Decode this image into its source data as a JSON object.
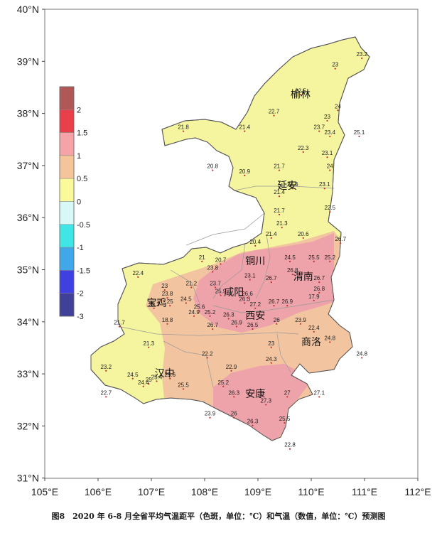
{
  "caption": "图8　2020 年 6-8 月全省平均气温距平（色斑，单位：℃）和气温（数值，单位：℃）预测图",
  "axes": {
    "lat_ticks": [
      "40°N",
      "39°N",
      "38°N",
      "37°N",
      "36°N",
      "35°N",
      "34°N",
      "33°N",
      "32°N",
      "31°N"
    ],
    "lon_ticks": [
      "105°E",
      "106°E",
      "107°E",
      "108°E",
      "109°E",
      "110°E",
      "111°E",
      "112°E"
    ]
  },
  "legend": {
    "labels": [
      "2",
      "1.5",
      "1",
      "0.5",
      "0",
      "-0.5",
      "-1",
      "-1.5",
      "-2",
      "-3"
    ],
    "colors": [
      "#b05858",
      "#e8404a",
      "#f5a3a6",
      "#f5c59a",
      "#fafa9a",
      "#d8f8f8",
      "#40e6e6",
      "#40a8e8",
      "#4040e0",
      "#404098"
    ]
  },
  "anomaly_colors": {
    "zero_to_half": "#f5f5a0",
    "half_to_one": "#f2c4a0",
    "one_to_onehalf": "#eea2aa"
  },
  "cities": [
    {
      "name": "榆林",
      "lon": 109.8,
      "lat": 38.3
    },
    {
      "name": "延安",
      "lon": 109.55,
      "lat": 36.55
    },
    {
      "name": "铜川",
      "lon": 108.95,
      "lat": 35.1
    },
    {
      "name": "渭南",
      "lon": 109.85,
      "lat": 34.8
    },
    {
      "name": "咸阳",
      "lon": 108.55,
      "lat": 34.5
    },
    {
      "name": "宝鸡",
      "lon": 107.1,
      "lat": 34.3
    },
    {
      "name": "西安",
      "lon": 108.95,
      "lat": 34.05
    },
    {
      "name": "商洛",
      "lon": 110.0,
      "lat": 33.55
    },
    {
      "name": "汉中",
      "lon": 107.25,
      "lat": 32.95
    },
    {
      "name": "安康",
      "lon": 108.95,
      "lat": 32.55
    }
  ],
  "temperatures": [
    {
      "v": "23.2",
      "lon": 110.95,
      "lat": 39.1
    },
    {
      "v": "23",
      "lon": 110.45,
      "lat": 38.9
    },
    {
      "v": "22.5",
      "lon": 109.8,
      "lat": 38.4
    },
    {
      "v": "22.7",
      "lon": 109.3,
      "lat": 38.0
    },
    {
      "v": "23",
      "lon": 110.3,
      "lat": 37.9
    },
    {
      "v": "24",
      "lon": 110.5,
      "lat": 38.1
    },
    {
      "v": "23.7",
      "lon": 110.15,
      "lat": 37.7
    },
    {
      "v": "23.4",
      "lon": 110.35,
      "lat": 37.6
    },
    {
      "v": "25.1",
      "lon": 110.9,
      "lat": 37.6
    },
    {
      "v": "21.8",
      "lon": 107.6,
      "lat": 37.7
    },
    {
      "v": "21.4",
      "lon": 108.75,
      "lat": 37.7
    },
    {
      "v": "22.3",
      "lon": 109.85,
      "lat": 37.3
    },
    {
      "v": "23.1",
      "lon": 110.3,
      "lat": 37.2
    },
    {
      "v": "20.8",
      "lon": 108.15,
      "lat": 36.95
    },
    {
      "v": "20.9",
      "lon": 108.75,
      "lat": 36.85
    },
    {
      "v": "21.7",
      "lon": 109.4,
      "lat": 36.95
    },
    {
      "v": "24",
      "lon": 110.35,
      "lat": 36.95
    },
    {
      "v": "22.6",
      "lon": 109.65,
      "lat": 36.6
    },
    {
      "v": "23.1",
      "lon": 110.25,
      "lat": 36.6
    },
    {
      "v": "21.4",
      "lon": 109.4,
      "lat": 36.45
    },
    {
      "v": "21.7",
      "lon": 109.4,
      "lat": 36.1
    },
    {
      "v": "22.5",
      "lon": 110.35,
      "lat": 36.15
    },
    {
      "v": "21.3",
      "lon": 109.45,
      "lat": 35.85
    },
    {
      "v": "21.4",
      "lon": 109.25,
      "lat": 35.65
    },
    {
      "v": "20.6",
      "lon": 109.85,
      "lat": 35.65
    },
    {
      "v": "20.4",
      "lon": 108.95,
      "lat": 35.5
    },
    {
      "v": "26.7",
      "lon": 110.55,
      "lat": 35.55
    },
    {
      "v": "21",
      "lon": 107.95,
      "lat": 35.2
    },
    {
      "v": "20.7",
      "lon": 108.3,
      "lat": 35.15
    },
    {
      "v": "23.8",
      "lon": 108.15,
      "lat": 35.0
    },
    {
      "v": "22.4",
      "lon": 106.75,
      "lat": 34.9
    },
    {
      "v": "24.5",
      "lon": 109.6,
      "lat": 35.2
    },
    {
      "v": "25.5",
      "lon": 110.05,
      "lat": 35.2
    },
    {
      "v": "25.2",
      "lon": 110.35,
      "lat": 35.2
    },
    {
      "v": "26.8",
      "lon": 109.65,
      "lat": 34.95
    },
    {
      "v": "23.1",
      "lon": 108.85,
      "lat": 34.85
    },
    {
      "v": "26.7",
      "lon": 109.25,
      "lat": 34.8
    },
    {
      "v": "26.7",
      "lon": 110.15,
      "lat": 34.8
    },
    {
      "v": "23",
      "lon": 107.25,
      "lat": 34.65
    },
    {
      "v": "21.2",
      "lon": 107.75,
      "lat": 34.7
    },
    {
      "v": "23.7",
      "lon": 108.2,
      "lat": 34.7
    },
    {
      "v": "23.8",
      "lon": 107.3,
      "lat": 34.5
    },
    {
      "v": "24.5",
      "lon": 107.65,
      "lat": 34.4
    },
    {
      "v": "25",
      "lon": 107.35,
      "lat": 34.35
    },
    {
      "v": "25.3",
      "lon": 107.05,
      "lat": 34.3
    },
    {
      "v": "25.6",
      "lon": 107.9,
      "lat": 34.25
    },
    {
      "v": "25.9",
      "lon": 108.3,
      "lat": 34.55
    },
    {
      "v": "24.9",
      "lon": 107.8,
      "lat": 34.15
    },
    {
      "v": "25.2",
      "lon": 108.1,
      "lat": 34.15
    },
    {
      "v": "26.3",
      "lon": 108.45,
      "lat": 34.1
    },
    {
      "v": "26.3",
      "lon": 108.75,
      "lat": 34.4
    },
    {
      "v": "26.6",
      "lon": 108.8,
      "lat": 34.5
    },
    {
      "v": "27.2",
      "lon": 108.95,
      "lat": 34.3
    },
    {
      "v": "26.7",
      "lon": 109.3,
      "lat": 34.35
    },
    {
      "v": "26.9",
      "lon": 109.55,
      "lat": 34.35
    },
    {
      "v": "26.8",
      "lon": 110.15,
      "lat": 34.6
    },
    {
      "v": "17.9",
      "lon": 110.05,
      "lat": 34.45
    },
    {
      "v": "18.8",
      "lon": 107.3,
      "lat": 34.0
    },
    {
      "v": "26.7",
      "lon": 108.15,
      "lat": 33.9
    },
    {
      "v": "26.9",
      "lon": 108.6,
      "lat": 33.95
    },
    {
      "v": "26.5",
      "lon": 108.9,
      "lat": 33.9
    },
    {
      "v": "26",
      "lon": 109.35,
      "lat": 34.0
    },
    {
      "v": "23.9",
      "lon": 109.8,
      "lat": 34.0
    },
    {
      "v": "22.4",
      "lon": 110.05,
      "lat": 33.85
    },
    {
      "v": "21.7",
      "lon": 106.4,
      "lat": 33.95
    },
    {
      "v": "21.3",
      "lon": 106.95,
      "lat": 33.55
    },
    {
      "v": "23",
      "lon": 109.25,
      "lat": 33.55
    },
    {
      "v": "24.8",
      "lon": 110.35,
      "lat": 33.65
    },
    {
      "v": "24.8",
      "lon": 110.95,
      "lat": 33.35
    },
    {
      "v": "22.2",
      "lon": 108.05,
      "lat": 33.35
    },
    {
      "v": "24.3",
      "lon": 109.25,
      "lat": 33.25
    },
    {
      "v": "23.2",
      "lon": 106.15,
      "lat": 33.1
    },
    {
      "v": "22.9",
      "lon": 108.5,
      "lat": 33.1
    },
    {
      "v": "24.5",
      "lon": 106.65,
      "lat": 32.95
    },
    {
      "v": "25.6",
      "lon": 107.35,
      "lat": 32.95
    },
    {
      "v": "25.4",
      "lon": 107.1,
      "lat": 32.9
    },
    {
      "v": "24.4",
      "lon": 106.85,
      "lat": 32.8
    },
    {
      "v": "25",
      "lon": 106.95,
      "lat": 32.85
    },
    {
      "v": "25.5",
      "lon": 107.6,
      "lat": 32.75
    },
    {
      "v": "25.2",
      "lon": 108.35,
      "lat": 32.8
    },
    {
      "v": "26.3",
      "lon": 108.55,
      "lat": 32.6
    },
    {
      "v": "27",
      "lon": 109.55,
      "lat": 32.6
    },
    {
      "v": "27.1",
      "lon": 110.15,
      "lat": 32.6
    },
    {
      "v": "22.7",
      "lon": 106.15,
      "lat": 32.6
    },
    {
      "v": "27.3",
      "lon": 109.15,
      "lat": 32.45
    },
    {
      "v": "23.9",
      "lon": 108.1,
      "lat": 32.2
    },
    {
      "v": "26",
      "lon": 108.55,
      "lat": 32.2
    },
    {
      "v": "25.5",
      "lon": 109.5,
      "lat": 32.1
    },
    {
      "v": "26.3",
      "lon": 108.9,
      "lat": 32.05
    },
    {
      "v": "22.8",
      "lon": 109.6,
      "lat": 31.6
    }
  ]
}
